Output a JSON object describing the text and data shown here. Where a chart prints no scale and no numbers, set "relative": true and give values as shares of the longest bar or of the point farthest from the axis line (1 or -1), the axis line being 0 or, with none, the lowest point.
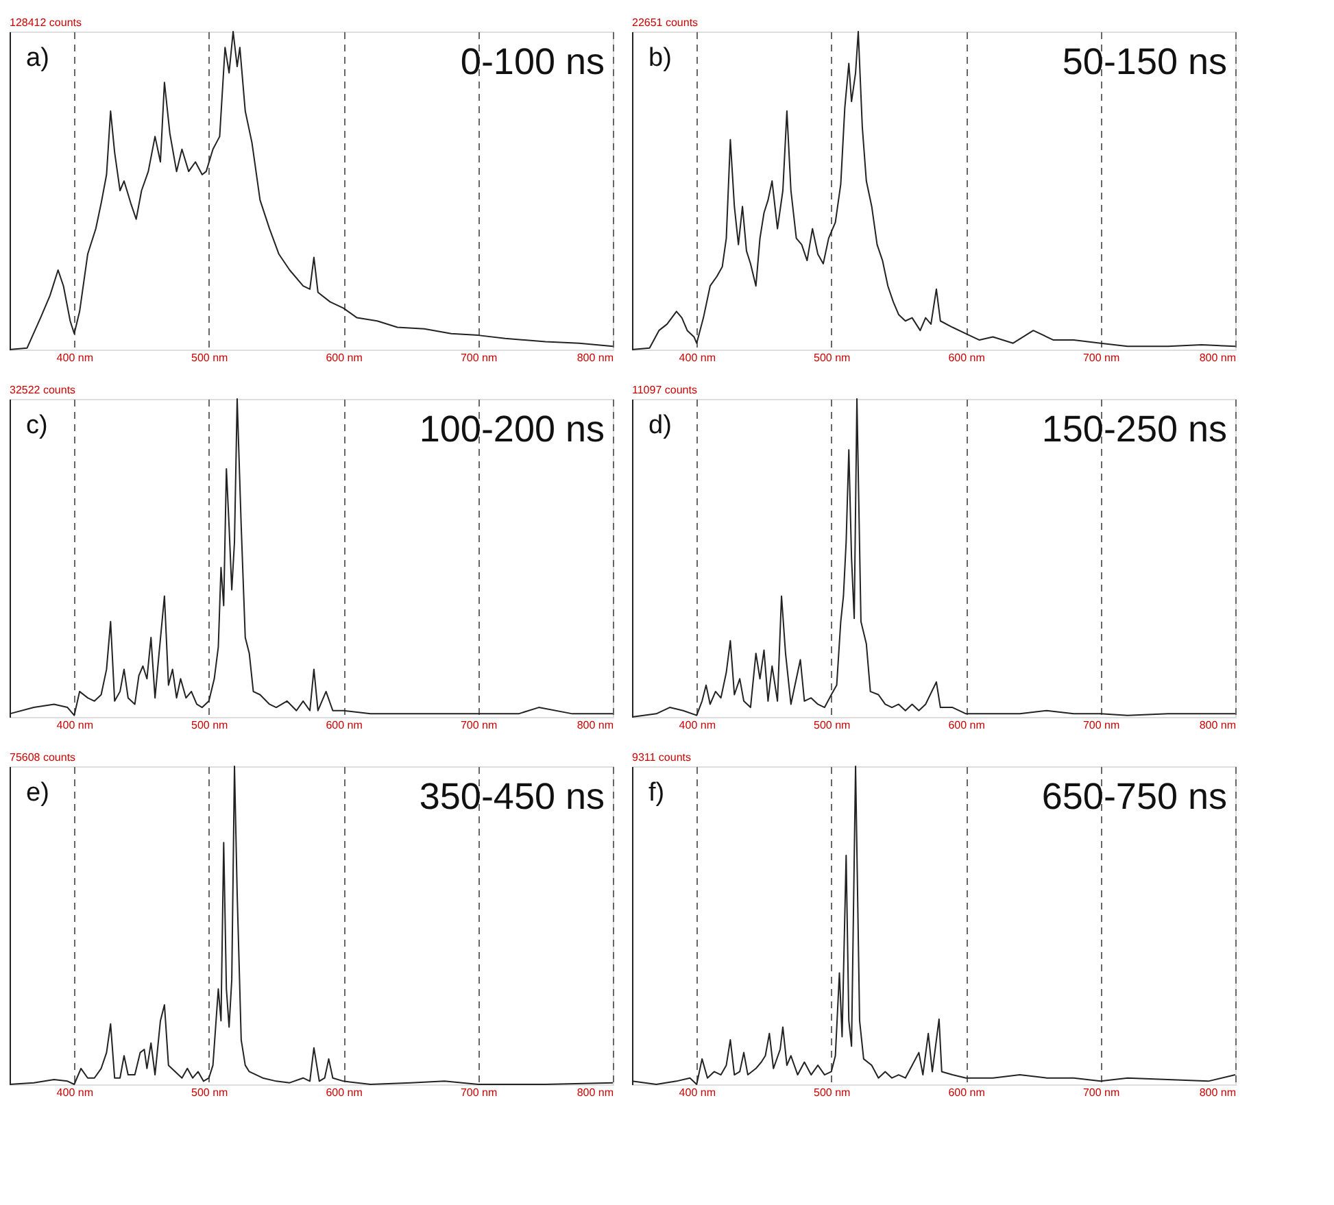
{
  "chart_data": [
    {
      "type": "line",
      "title": "a)",
      "subtitle": "0-100 ns",
      "annotations": [
        "128412 counts"
      ],
      "relative": true,
      "grid": "x",
      "xlim": [
        352,
        800
      ],
      "xticks": [
        {
          "value": 400,
          "label": "400 nm"
        },
        {
          "value": 500,
          "label": "500 nm"
        },
        {
          "value": 600,
          "label": "600 nm"
        },
        {
          "value": 700,
          "label": "700 nm"
        },
        {
          "value": 800,
          "label": "800 nm"
        }
      ],
      "x": [
        352,
        365,
        375,
        382,
        388,
        392,
        397,
        400,
        404,
        410,
        416,
        420,
        424,
        427,
        430,
        434,
        437,
        442,
        446,
        450,
        455,
        460,
        464,
        467,
        471,
        476,
        480,
        485,
        490,
        495,
        498,
        503,
        508,
        512,
        515,
        518,
        521,
        523,
        527,
        532,
        538,
        545,
        552,
        560,
        570,
        575,
        578,
        581,
        590,
        600,
        610,
        625,
        640,
        660,
        680,
        700,
        720,
        750,
        775,
        800
      ],
      "series": [
        {
          "color": "#222222",
          "values": [
            0,
            0.005,
            0.1,
            0.17,
            0.25,
            0.2,
            0.09,
            0.05,
            0.12,
            0.3,
            0.38,
            0.46,
            0.55,
            0.75,
            0.62,
            0.5,
            0.53,
            0.46,
            0.41,
            0.5,
            0.56,
            0.67,
            0.59,
            0.84,
            0.68,
            0.56,
            0.63,
            0.56,
            0.59,
            0.55,
            0.56,
            0.63,
            0.67,
            0.95,
            0.87,
            1.0,
            0.89,
            0.95,
            0.75,
            0.65,
            0.47,
            0.38,
            0.3,
            0.25,
            0.2,
            0.19,
            0.29,
            0.18,
            0.15,
            0.13,
            0.1,
            0.09,
            0.07,
            0.065,
            0.05,
            0.045,
            0.035,
            0.025,
            0.02,
            0.01
          ]
        }
      ]
    },
    {
      "type": "line",
      "title": "b)",
      "subtitle": "50-150 ns",
      "annotations": [
        "22651 counts"
      ],
      "relative": true,
      "grid": "x",
      "xlim": [
        352,
        800
      ],
      "xticks": [
        {
          "value": 400,
          "label": "400 nm"
        },
        {
          "value": 500,
          "label": "500 nm"
        },
        {
          "value": 600,
          "label": "600 nm"
        },
        {
          "value": 700,
          "label": "700 nm"
        },
        {
          "value": 800,
          "label": "800 nm"
        }
      ],
      "x": [
        352,
        365,
        372,
        378,
        385,
        389,
        393,
        398,
        400,
        405,
        410,
        415,
        419,
        422,
        425,
        428,
        431,
        434,
        437,
        440,
        444,
        447,
        450,
        453,
        456,
        460,
        464,
        467,
        470,
        474,
        478,
        482,
        486,
        490,
        494,
        498,
        503,
        507,
        510,
        513,
        515,
        518,
        520,
        523,
        526,
        530,
        534,
        538,
        542,
        546,
        550,
        555,
        560,
        566,
        570,
        574,
        578,
        581,
        590,
        600,
        610,
        620,
        635,
        650,
        665,
        680,
        700,
        720,
        750,
        775,
        800
      ],
      "series": [
        {
          "color": "#222222",
          "values": [
            0,
            0.005,
            0.06,
            0.08,
            0.12,
            0.1,
            0.06,
            0.04,
            0.02,
            0.1,
            0.2,
            0.23,
            0.26,
            0.35,
            0.66,
            0.45,
            0.33,
            0.45,
            0.31,
            0.27,
            0.2,
            0.35,
            0.43,
            0.47,
            0.53,
            0.38,
            0.5,
            0.75,
            0.5,
            0.35,
            0.33,
            0.28,
            0.38,
            0.3,
            0.27,
            0.35,
            0.4,
            0.52,
            0.76,
            0.9,
            0.78,
            0.87,
            1.0,
            0.7,
            0.53,
            0.45,
            0.33,
            0.28,
            0.2,
            0.15,
            0.11,
            0.09,
            0.1,
            0.06,
            0.1,
            0.08,
            0.19,
            0.09,
            0.07,
            0.05,
            0.03,
            0.04,
            0.02,
            0.06,
            0.03,
            0.03,
            0.02,
            0.01,
            0.01,
            0.015,
            0.01
          ]
        }
      ]
    },
    {
      "type": "line",
      "title": "c)",
      "subtitle": "100-200 ns",
      "annotations": [
        "32522 counts"
      ],
      "relative": true,
      "grid": "x",
      "xlim": [
        352,
        800
      ],
      "xticks": [
        {
          "value": 400,
          "label": "400 nm"
        },
        {
          "value": 500,
          "label": "500 nm"
        },
        {
          "value": 600,
          "label": "600 nm"
        },
        {
          "value": 700,
          "label": "700 nm"
        },
        {
          "value": 800,
          "label": "800 nm"
        }
      ],
      "x": [
        352,
        370,
        385,
        395,
        400,
        404,
        410,
        415,
        420,
        424,
        427,
        430,
        434,
        437,
        440,
        445,
        448,
        451,
        454,
        457,
        460,
        463,
        467,
        470,
        473,
        476,
        479,
        483,
        487,
        491,
        495,
        500,
        504,
        507,
        509,
        511,
        513,
        515,
        517,
        519,
        521,
        524,
        527,
        530,
        533,
        538,
        545,
        550,
        558,
        565,
        570,
        575,
        578,
        581,
        587,
        592,
        600,
        620,
        650,
        680,
        700,
        730,
        745,
        770,
        800
      ],
      "series": [
        {
          "color": "#222222",
          "values": [
            0.01,
            0.03,
            0.04,
            0.03,
            0.005,
            0.08,
            0.06,
            0.05,
            0.07,
            0.15,
            0.3,
            0.05,
            0.08,
            0.15,
            0.06,
            0.04,
            0.13,
            0.16,
            0.12,
            0.25,
            0.06,
            0.2,
            0.38,
            0.1,
            0.15,
            0.06,
            0.12,
            0.06,
            0.08,
            0.04,
            0.03,
            0.05,
            0.12,
            0.22,
            0.47,
            0.35,
            0.78,
            0.6,
            0.4,
            0.55,
            1.0,
            0.6,
            0.25,
            0.2,
            0.08,
            0.07,
            0.04,
            0.03,
            0.05,
            0.02,
            0.05,
            0.02,
            0.15,
            0.02,
            0.08,
            0.02,
            0.02,
            0.01,
            0.01,
            0.01,
            0.01,
            0.01,
            0.03,
            0.01,
            0.01
          ]
        }
      ]
    },
    {
      "type": "line",
      "title": "d)",
      "subtitle": "150-250 ns",
      "annotations": [
        "11097 counts"
      ],
      "relative": true,
      "grid": "x",
      "xlim": [
        352,
        800
      ],
      "xticks": [
        {
          "value": 400,
          "label": "400 nm"
        },
        {
          "value": 500,
          "label": "500 nm"
        },
        {
          "value": 600,
          "label": "600 nm"
        },
        {
          "value": 700,
          "label": "700 nm"
        },
        {
          "value": 800,
          "label": "800 nm"
        }
      ],
      "x": [
        352,
        370,
        380,
        390,
        400,
        404,
        407,
        410,
        414,
        418,
        422,
        425,
        428,
        432,
        435,
        440,
        444,
        447,
        450,
        453,
        456,
        460,
        463,
        466,
        470,
        474,
        477,
        480,
        485,
        490,
        495,
        500,
        504,
        507,
        509,
        511,
        513,
        515,
        517,
        519,
        522,
        526,
        529,
        535,
        540,
        545,
        550,
        555,
        560,
        565,
        570,
        578,
        581,
        590,
        600,
        620,
        640,
        660,
        680,
        700,
        720,
        750,
        775,
        800
      ],
      "series": [
        {
          "color": "#222222",
          "values": [
            0,
            0.01,
            0.03,
            0.02,
            0.005,
            0.05,
            0.1,
            0.04,
            0.08,
            0.06,
            0.14,
            0.24,
            0.07,
            0.12,
            0.05,
            0.03,
            0.2,
            0.12,
            0.21,
            0.05,
            0.16,
            0.05,
            0.38,
            0.2,
            0.04,
            0.12,
            0.18,
            0.05,
            0.06,
            0.04,
            0.03,
            0.07,
            0.1,
            0.3,
            0.38,
            0.55,
            0.84,
            0.5,
            0.31,
            1.0,
            0.3,
            0.23,
            0.08,
            0.07,
            0.04,
            0.03,
            0.04,
            0.02,
            0.04,
            0.02,
            0.04,
            0.11,
            0.03,
            0.03,
            0.01,
            0.01,
            0.01,
            0.02,
            0.01,
            0.01,
            0.005,
            0.01,
            0.01,
            0.01
          ]
        }
      ]
    },
    {
      "type": "line",
      "title": "e)",
      "subtitle": "350-450 ns",
      "annotations": [
        "75608 counts"
      ],
      "relative": true,
      "grid": "x",
      "xlim": [
        352,
        800
      ],
      "xticks": [
        {
          "value": 400,
          "label": "400 nm"
        },
        {
          "value": 500,
          "label": "500 nm"
        },
        {
          "value": 600,
          "label": "600 nm"
        },
        {
          "value": 700,
          "label": "700 nm"
        },
        {
          "value": 800,
          "label": "800 nm"
        }
      ],
      "x": [
        352,
        370,
        385,
        395,
        400,
        405,
        410,
        415,
        420,
        424,
        427,
        430,
        434,
        437,
        440,
        445,
        449,
        452,
        454,
        457,
        460,
        464,
        467,
        470,
        475,
        480,
        484,
        488,
        492,
        496,
        500,
        503,
        507,
        509,
        511,
        513,
        515,
        517,
        519,
        521,
        524,
        527,
        530,
        540,
        550,
        560,
        570,
        575,
        578,
        582,
        586,
        589,
        592,
        600,
        620,
        650,
        675,
        700,
        750,
        800
      ],
      "series": [
        {
          "color": "#222222",
          "values": [
            0,
            0.005,
            0.015,
            0.01,
            0,
            0.05,
            0.02,
            0.02,
            0.05,
            0.1,
            0.19,
            0.02,
            0.02,
            0.09,
            0.03,
            0.03,
            0.1,
            0.11,
            0.05,
            0.13,
            0.03,
            0.2,
            0.25,
            0.06,
            0.04,
            0.02,
            0.05,
            0.02,
            0.04,
            0.01,
            0.02,
            0.06,
            0.3,
            0.2,
            0.76,
            0.3,
            0.18,
            0.33,
            1.0,
            0.6,
            0.14,
            0.06,
            0.04,
            0.02,
            0.01,
            0.005,
            0.02,
            0.01,
            0.115,
            0.01,
            0.02,
            0.08,
            0.02,
            0.01,
            0,
            0.005,
            0.01,
            0,
            0,
            0.005
          ]
        }
      ]
    },
    {
      "type": "line",
      "title": "f)",
      "subtitle": "650-750 ns",
      "annotations": [
        "9311 counts"
      ],
      "relative": true,
      "grid": "x",
      "xlim": [
        352,
        800
      ],
      "xticks": [
        {
          "value": 400,
          "label": "400 nm"
        },
        {
          "value": 500,
          "label": "500 nm"
        },
        {
          "value": 600,
          "label": "600 nm"
        },
        {
          "value": 700,
          "label": "700 nm"
        },
        {
          "value": 800,
          "label": "800 nm"
        }
      ],
      "x": [
        352,
        370,
        385,
        395,
        400,
        404,
        408,
        413,
        418,
        422,
        425,
        428,
        432,
        435,
        438,
        444,
        448,
        451,
        454,
        457,
        462,
        464,
        467,
        470,
        475,
        480,
        485,
        490,
        495,
        500,
        503,
        506,
        508,
        511,
        513,
        515,
        518,
        521,
        524,
        530,
        535,
        540,
        545,
        550,
        555,
        560,
        565,
        568,
        572,
        575,
        580,
        582,
        590,
        600,
        620,
        640,
        660,
        680,
        700,
        720,
        750,
        780,
        800
      ],
      "series": [
        {
          "color": "#222222",
          "values": [
            0.01,
            0,
            0.01,
            0.02,
            0,
            0.08,
            0.02,
            0.04,
            0.03,
            0.06,
            0.14,
            0.03,
            0.04,
            0.1,
            0.03,
            0.05,
            0.07,
            0.09,
            0.16,
            0.05,
            0.11,
            0.18,
            0.06,
            0.09,
            0.03,
            0.07,
            0.03,
            0.06,
            0.03,
            0.04,
            0.09,
            0.35,
            0.15,
            0.72,
            0.2,
            0.12,
            1.0,
            0.2,
            0.08,
            0.06,
            0.02,
            0.04,
            0.02,
            0.03,
            0.02,
            0.06,
            0.1,
            0.03,
            0.16,
            0.04,
            0.205,
            0.04,
            0.03,
            0.02,
            0.02,
            0.03,
            0.02,
            0.02,
            0.01,
            0.02,
            0.015,
            0.01,
            0.03
          ]
        }
      ]
    }
  ]
}
